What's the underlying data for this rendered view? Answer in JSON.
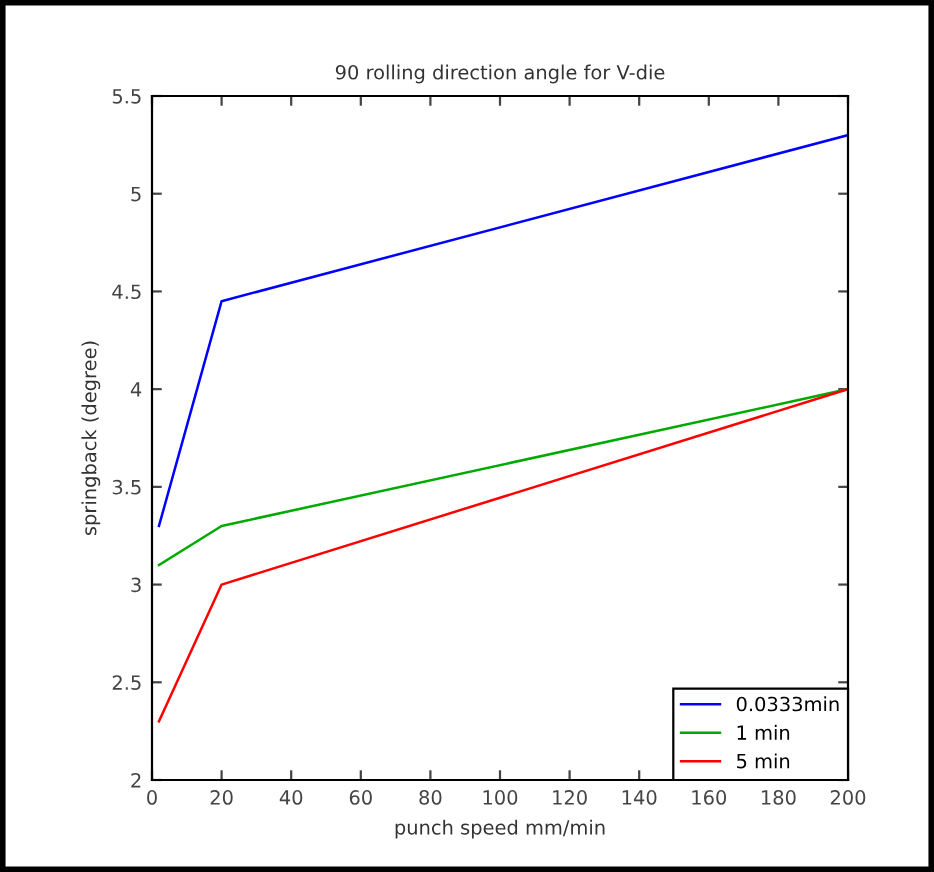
{
  "chart_data": {
    "type": "line",
    "title": "90 rolling direction angle for V-die",
    "xlabel": "punch speed mm/min",
    "ylabel": "springback (degree)",
    "series": [
      {
        "name": "0.0333min",
        "color": "#0000ff",
        "x": [
          2,
          20,
          200
        ],
        "values": [
          3.3,
          4.45,
          5.3
        ]
      },
      {
        "name": "1 min",
        "color": "#00aa00",
        "x": [
          2,
          20,
          200
        ],
        "values": [
          3.1,
          3.3,
          4.0
        ]
      },
      {
        "name": "5 min",
        "color": "#ff0000",
        "x": [
          2,
          20,
          200
        ],
        "values": [
          2.3,
          3.0,
          4.0
        ]
      }
    ],
    "xlim": [
      0,
      200
    ],
    "xticks": [
      0,
      20,
      40,
      60,
      80,
      100,
      120,
      140,
      160,
      180,
      200
    ],
    "ylim": [
      2,
      5.5
    ],
    "yticks": [
      2,
      2.5,
      3,
      3.5,
      4,
      4.5,
      5,
      5.5
    ],
    "legend": "bottom right",
    "grid": false,
    "marker": "none",
    "line_style": "solid"
  }
}
